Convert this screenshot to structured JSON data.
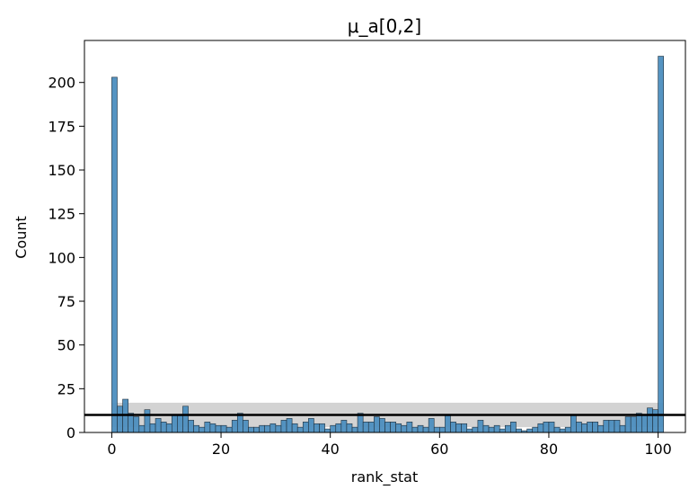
{
  "chart_data": {
    "type": "bar",
    "title": "μ_a[0,2]",
    "xlabel": "rank_stat",
    "ylabel": "Count",
    "xlim": [
      -5,
      105
    ],
    "ylim": [
      0,
      224
    ],
    "xticks": [
      0,
      20,
      40,
      60,
      80,
      100
    ],
    "yticks": [
      0,
      25,
      50,
      75,
      100,
      125,
      150,
      175,
      200
    ],
    "bin_width": 1,
    "bin_start": 0,
    "values": [
      203,
      15,
      19,
      11,
      9,
      4,
      13,
      5,
      8,
      6,
      5,
      10,
      10,
      15,
      7,
      4,
      3,
      6,
      5,
      4,
      4,
      3,
      7,
      11,
      7,
      3,
      3,
      4,
      4,
      5,
      4,
      7,
      8,
      5,
      3,
      6,
      8,
      5,
      5,
      2,
      4,
      5,
      7,
      5,
      3,
      11,
      6,
      6,
      9,
      8,
      6,
      6,
      5,
      4,
      6,
      3,
      4,
      3,
      8,
      3,
      3,
      10,
      6,
      5,
      5,
      2,
      3,
      7,
      4,
      3,
      4,
      2,
      4,
      6,
      2,
      1,
      2,
      3,
      5,
      6,
      6,
      3,
      2,
      3,
      10,
      6,
      5,
      6,
      6,
      4,
      7,
      7,
      7,
      4,
      9,
      9,
      11,
      10,
      14,
      13,
      215
    ],
    "bar_color": "#4c8ebf",
    "band": {
      "lower": 3,
      "upper": 17,
      "color": "#d3d3d3"
    },
    "reference_line": {
      "y": 10,
      "color": "#000000"
    },
    "grid": false,
    "legend": "none"
  }
}
